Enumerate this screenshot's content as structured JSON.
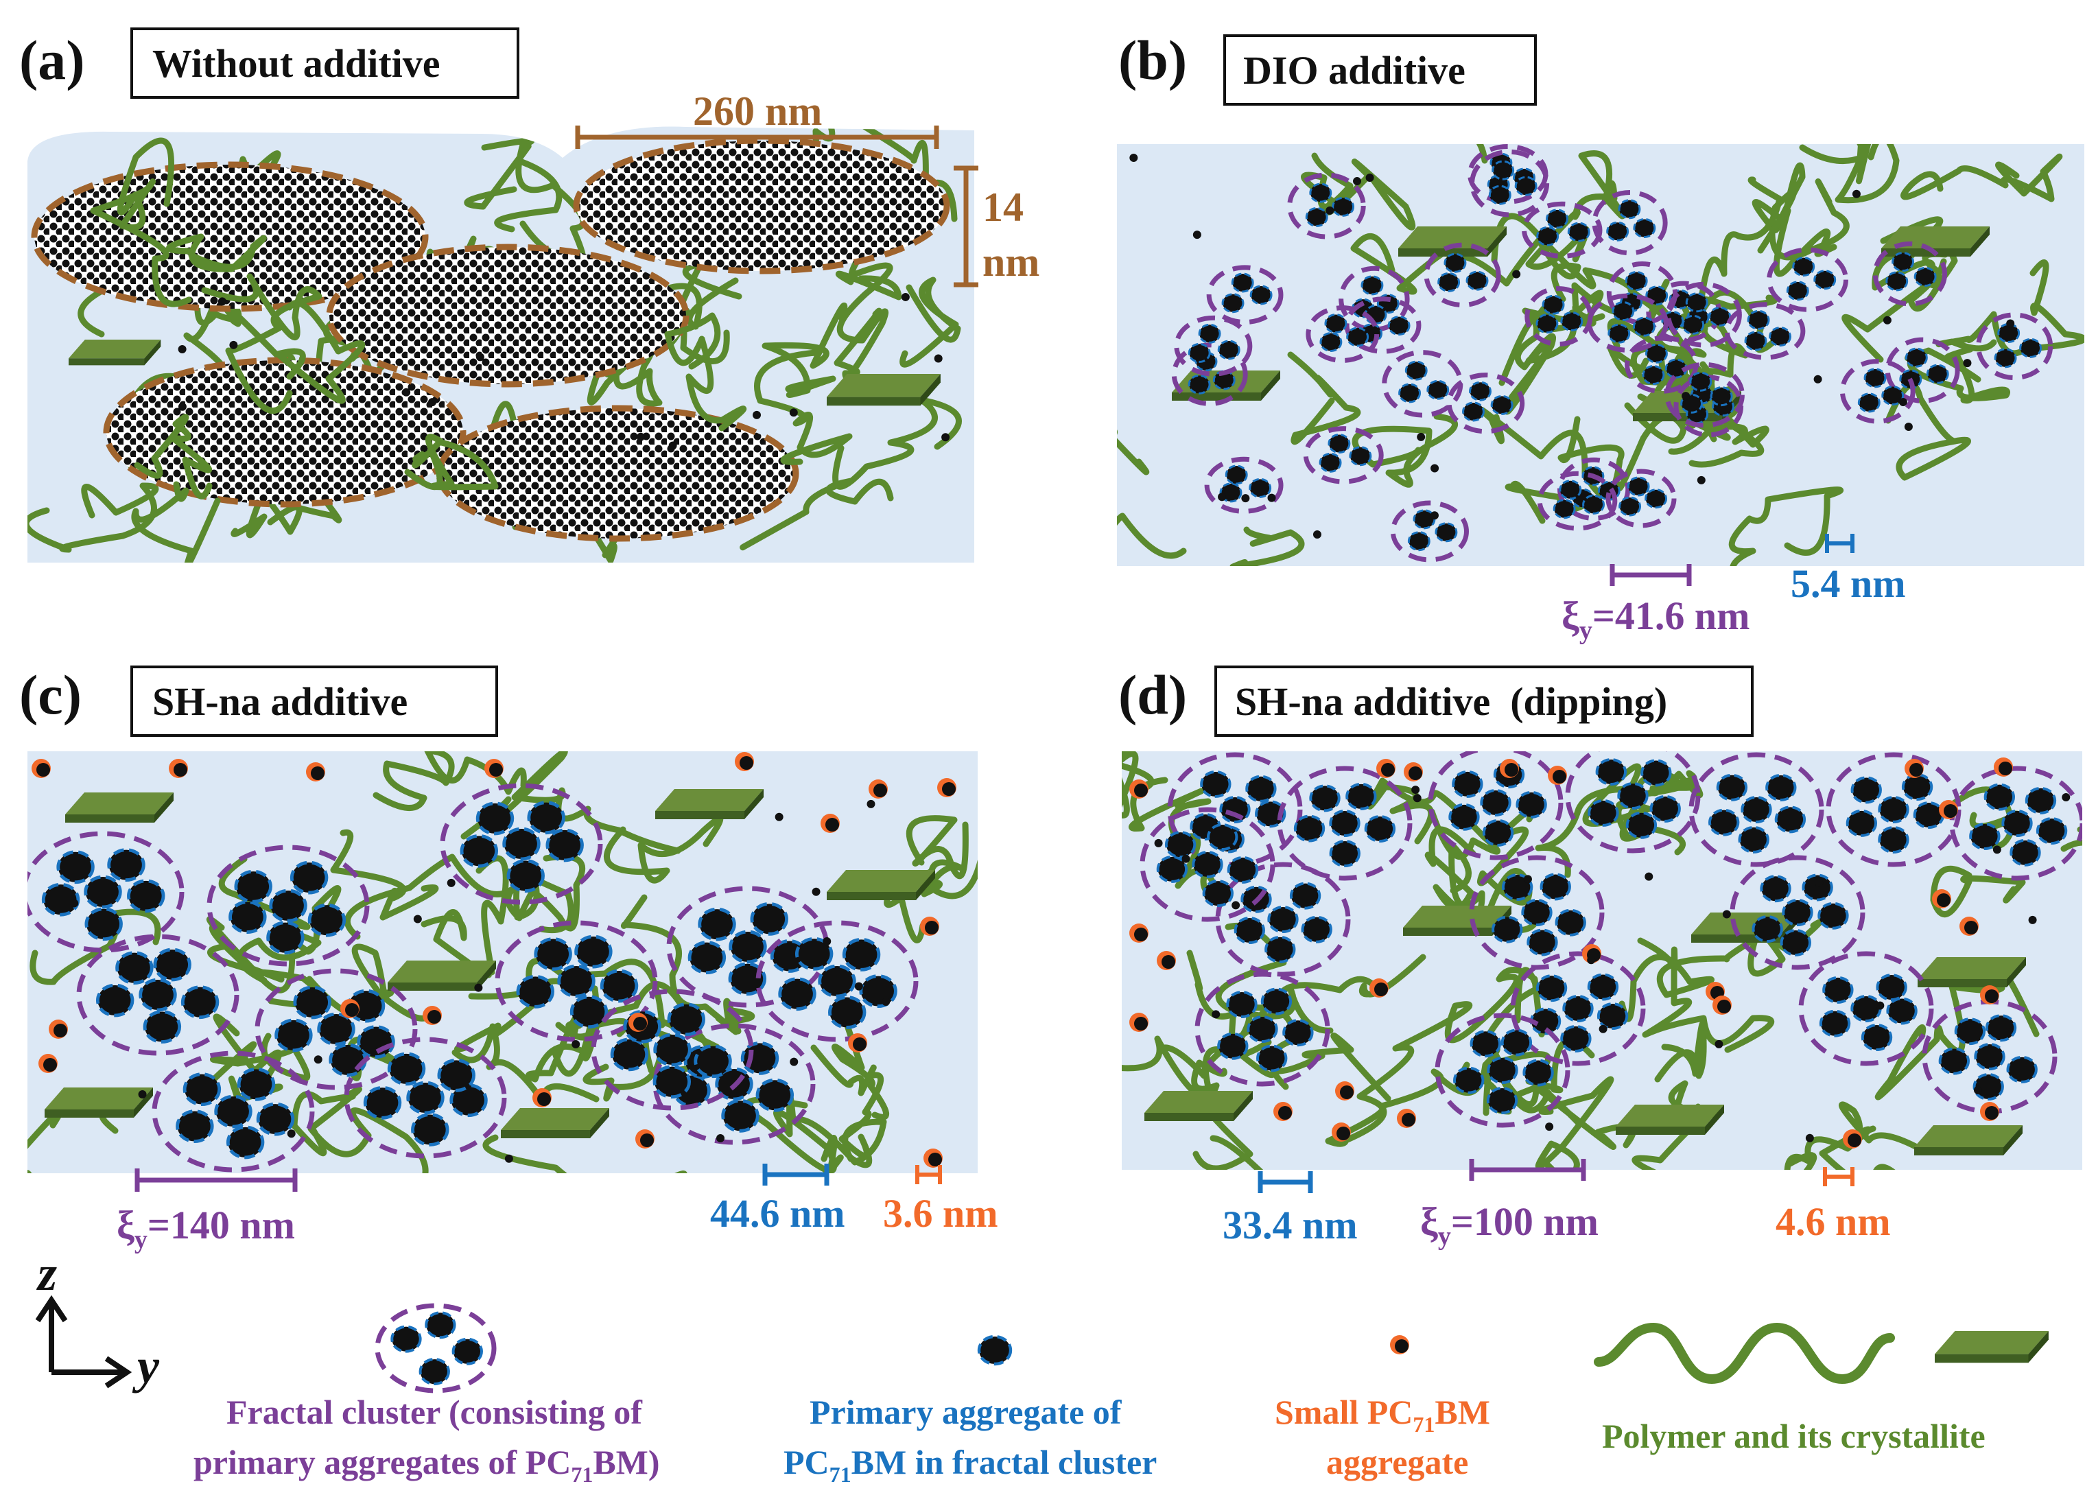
{
  "panels": [
    {
      "letter": "(a)",
      "title": "Without additive"
    },
    {
      "letter": "(b)",
      "title": "DIO additive"
    },
    {
      "letter": "(c)",
      "title": "SH-na additive"
    },
    {
      "letter": "(d)",
      "title": "SH-na additive  (dipping)"
    }
  ],
  "scales": {
    "a_width": "260 nm",
    "a_height_1": "14",
    "a_height_2": "nm",
    "b_xi_greek": "ξ",
    "b_xi_sub": "y",
    "b_xi_value": "=41.6 nm",
    "b_primary": "5.4 nm",
    "c_xi_greek": "ξ",
    "c_xi_sub": "y",
    "c_xi_value": "=140 nm",
    "c_primary": "44.6 nm",
    "c_small": "3.6 nm",
    "d_primary": "33.4 nm",
    "d_xi_greek": "ξ",
    "d_xi_sub": "y",
    "d_xi_value": "=100 nm",
    "d_small": "4.6 nm"
  },
  "axes": {
    "z": "z",
    "y": "y"
  },
  "legend": {
    "fractal_1": "Fractal cluster (consisting of",
    "fractal_2a": "primary aggregates of PC",
    "fractal_2sub": "71",
    "fractal_2b": "BM)",
    "primary_1": "Primary aggregate of",
    "primary_2a": "PC",
    "primary_2sub": "71",
    "primary_2b": "BM in fractal cluster",
    "small_1a": "Small PC",
    "small_1sub": "71",
    "small_1b": "BM",
    "small_2": "aggregate",
    "polymer": "Polymer and its crystallite"
  },
  "colors": {
    "background": "#ffffff",
    "film": "#dce8f5",
    "polymer": "#5b8a2e",
    "crystallite_top": "#6b8e3a",
    "crystallite_side": "#3f5f22",
    "fractal": "#7b3f98",
    "primary": "#1a73c0",
    "small": "#f26a2a",
    "scale_brown": "#a0642d",
    "dot": "#111111"
  }
}
